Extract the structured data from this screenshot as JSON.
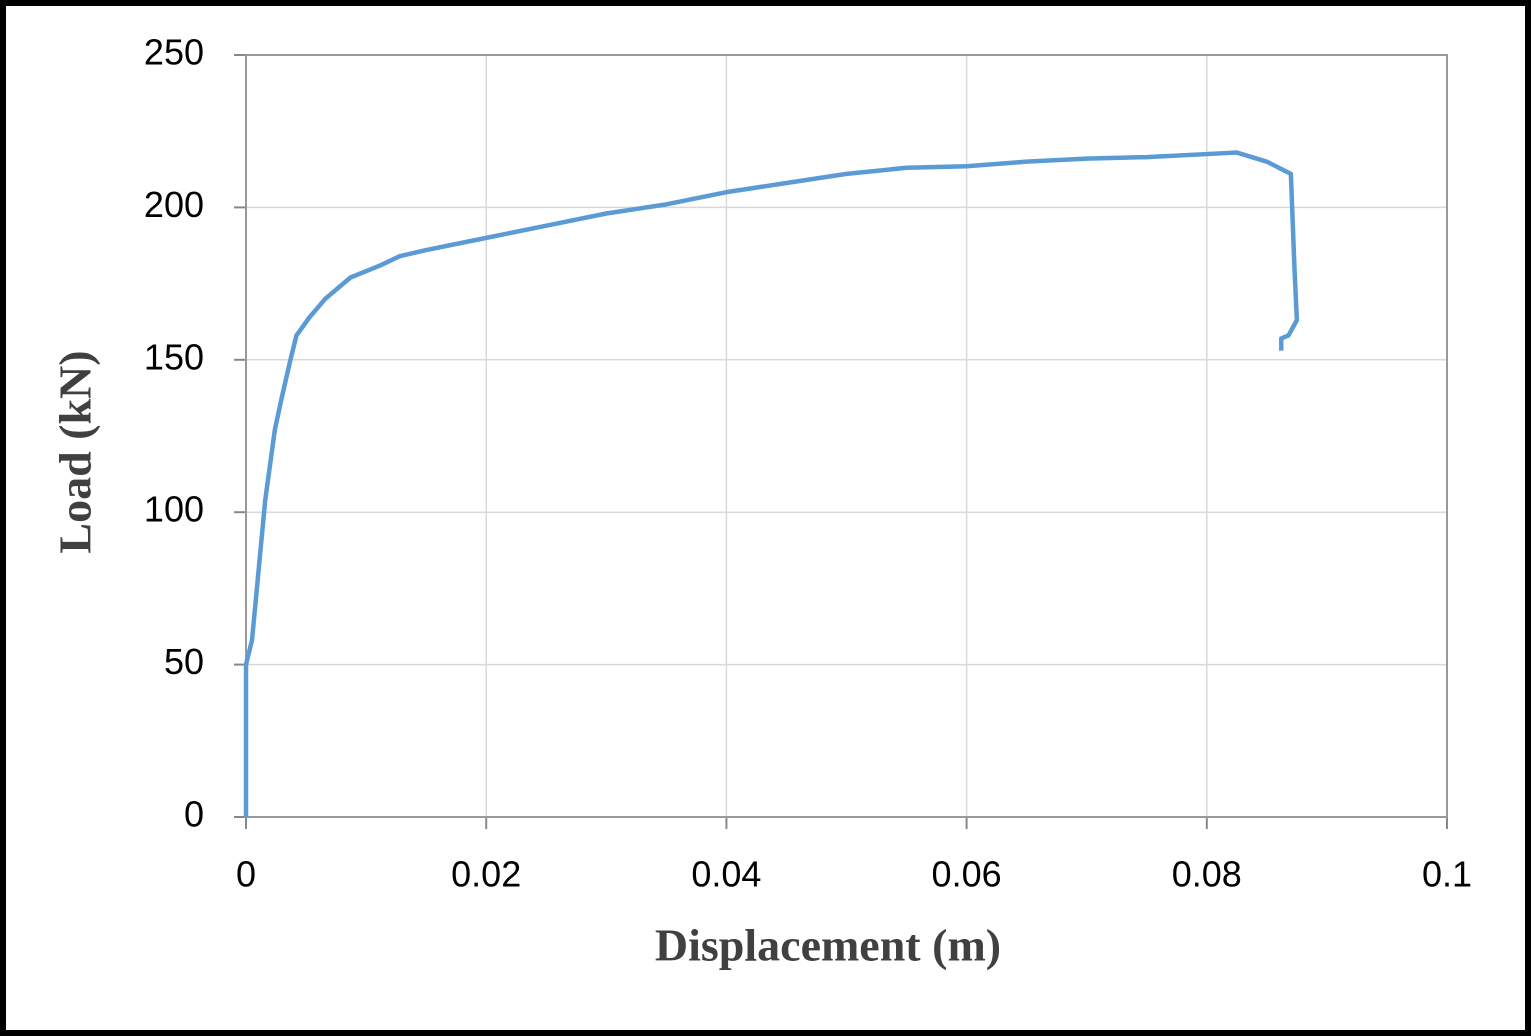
{
  "chart_data": {
    "type": "line",
    "x_label": "Displacement (m)",
    "y_label": "Load (kN)",
    "series": [
      {
        "color": "#5b9bd5",
        "x": [
          0,
          0,
          0.0005,
          0.0016,
          0.0024,
          0.003,
          0.0037,
          0.0042,
          0.0053,
          0.0066,
          0.0087,
          0.0112,
          0.0128,
          0.015,
          0.02,
          0.025,
          0.03,
          0.035,
          0.04,
          0.045,
          0.05,
          0.055,
          0.06,
          0.065,
          0.07,
          0.075,
          0.08,
          0.0825,
          0.085,
          0.087,
          0.0873,
          0.0875,
          0.0868,
          0.0862,
          0.0862
        ],
        "values": [
          0,
          50,
          58,
          104,
          127,
          138,
          150,
          158,
          164,
          170,
          177,
          181,
          184,
          186,
          190,
          194,
          198,
          201,
          205,
          208,
          211,
          213,
          213.5,
          215,
          216,
          216.5,
          217.5,
          218,
          215,
          211,
          180,
          163,
          158,
          157,
          153
        ]
      }
    ],
    "xlim": [
      0,
      0.1
    ],
    "xticks": [
      0,
      0.02,
      0.04,
      0.06,
      0.08,
      0.1
    ],
    "ylim": [
      0,
      250
    ],
    "yticks": [
      0,
      50,
      100,
      150,
      200,
      250
    ],
    "grid": true
  }
}
